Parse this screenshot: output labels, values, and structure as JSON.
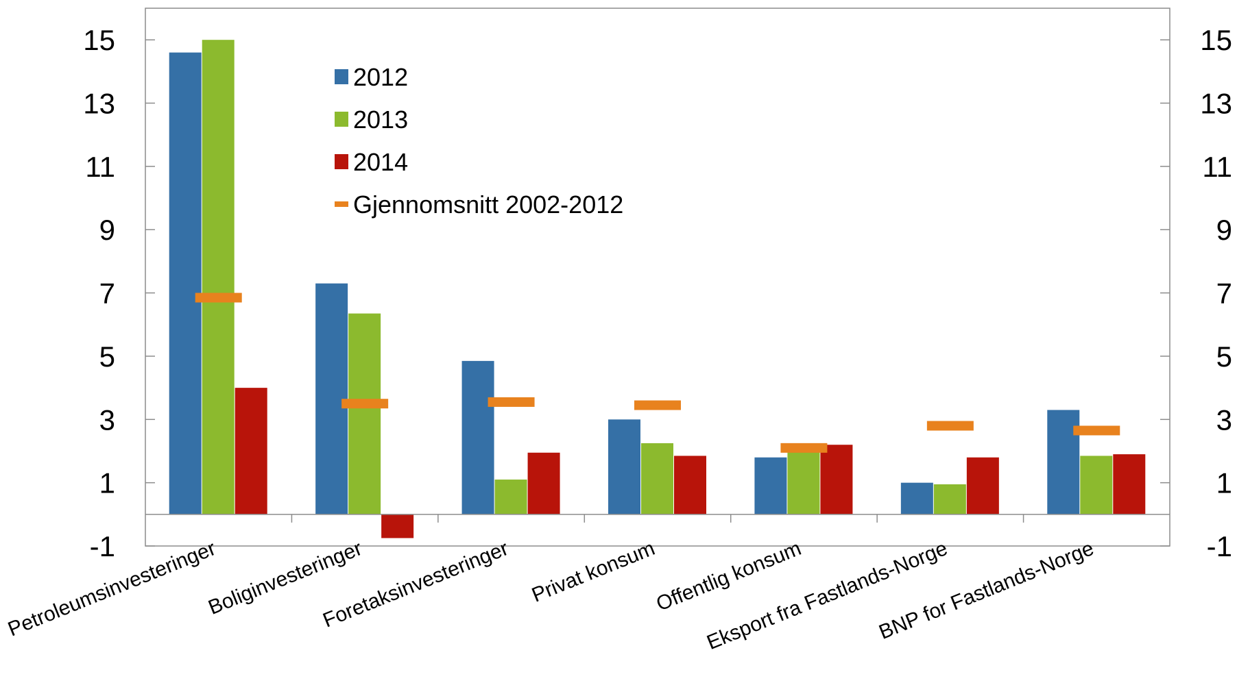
{
  "chart_data": {
    "type": "bar",
    "categories": [
      "Petroleumsinvesteringer",
      "Boliginvesteringer",
      "Foretaksinvesteringer",
      "Privat konsum",
      "Offentlig konsum",
      "Eksport fra Fastlands-Norge",
      "BNP for Fastlands-Norge"
    ],
    "series": [
      {
        "name": "2012",
        "type": "bar",
        "color": "#3570a6",
        "values": [
          14.6,
          7.3,
          4.85,
          3.0,
          1.8,
          1.0,
          3.3
        ]
      },
      {
        "name": "2013",
        "type": "bar",
        "color": "#8cba2e",
        "values": [
          15.0,
          6.35,
          1.1,
          2.25,
          2.15,
          0.95,
          1.85
        ]
      },
      {
        "name": "2014",
        "type": "bar",
        "color": "#b8140a",
        "values": [
          4.0,
          -0.75,
          1.95,
          1.85,
          2.2,
          1.8,
          1.9
        ]
      },
      {
        "name": "Gjennomsnitt 2002-2012",
        "type": "marker",
        "color": "#e8821e",
        "values": [
          6.85,
          3.5,
          3.55,
          3.45,
          2.1,
          2.8,
          2.65
        ]
      }
    ],
    "yticks": [
      15,
      13,
      11,
      9,
      7,
      5,
      3,
      1,
      -1
    ],
    "ylim": [
      -1,
      16
    ],
    "secondary_axis": true,
    "legend_position": "top-center",
    "grid": false,
    "title": "",
    "xlabel": "",
    "ylabel": ""
  }
}
